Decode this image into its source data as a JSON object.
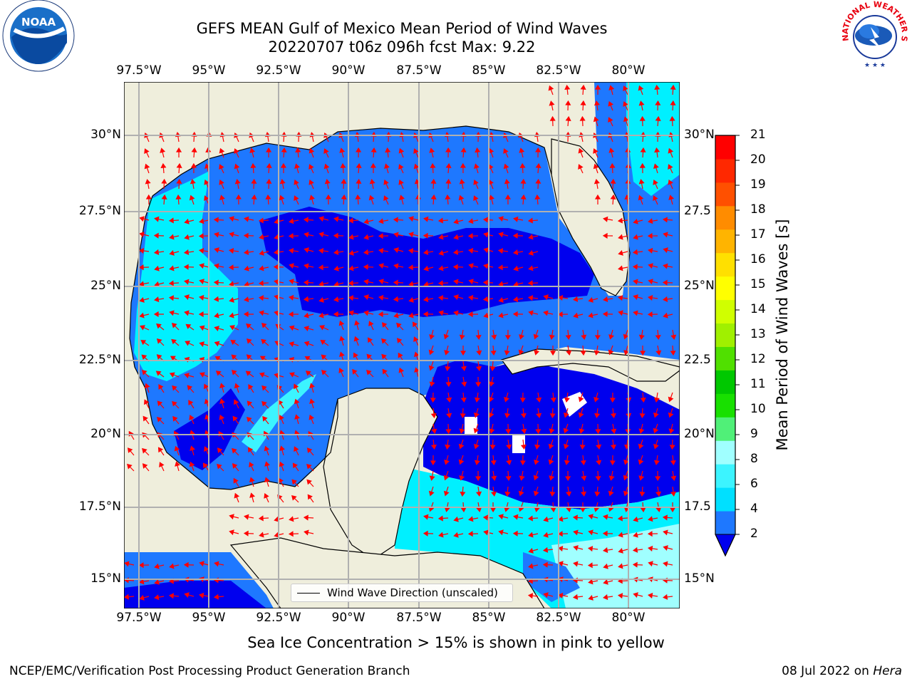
{
  "title": {
    "line1": "GEFS MEAN Gulf of Mexico Mean Period of Wind Waves",
    "line2": "20220707 t06z 096h fcst   Max: 9.22"
  },
  "axes": {
    "lon_labels": [
      "97.5°W",
      "95°W",
      "92.5°W",
      "90°W",
      "87.5°W",
      "85°W",
      "82.5°W",
      "80°W"
    ],
    "lat_labels_left": [
      "30°N",
      "27.5°N",
      "25°N",
      "22.5°N",
      "20°N",
      "17.5°N",
      "15°N"
    ],
    "lat_labels_right": [
      "30°N",
      "27.5",
      "25°N",
      "22.5",
      "20°N",
      "17.5",
      "15°N"
    ]
  },
  "legend": {
    "label": "Wind Wave Direction (unscaled)"
  },
  "colorbar": {
    "label": "Mean Period of Wind Waves [s]",
    "ticks": [
      "21",
      "20",
      "19",
      "18",
      "17",
      "16",
      "15",
      "14",
      "13",
      "12",
      "11",
      "10",
      "9",
      "8",
      "6",
      "4",
      "2"
    ],
    "colors": [
      "#0000ee",
      "#1e78ff",
      "#00e0ff",
      "#3cf4ff",
      "#a0ffff",
      "#50f078",
      "#18e000",
      "#00c800",
      "#50e000",
      "#a0f000",
      "#d0ff00",
      "#ffff00",
      "#ffe000",
      "#ffb400",
      "#ff8c00",
      "#ff5000",
      "#ff2800",
      "#ff0000"
    ]
  },
  "note": "Sea Ice Concentration > 15% is shown in pink to yellow",
  "footer": {
    "left": "NCEP/EMC/Verification Post Processing Product Generation Branch",
    "right_date": "08 Jul 2022 on ",
    "right_host": "Hera"
  },
  "logos": {
    "left": "NOAA",
    "right": "NATIONAL WEATHER SERVICE"
  }
}
